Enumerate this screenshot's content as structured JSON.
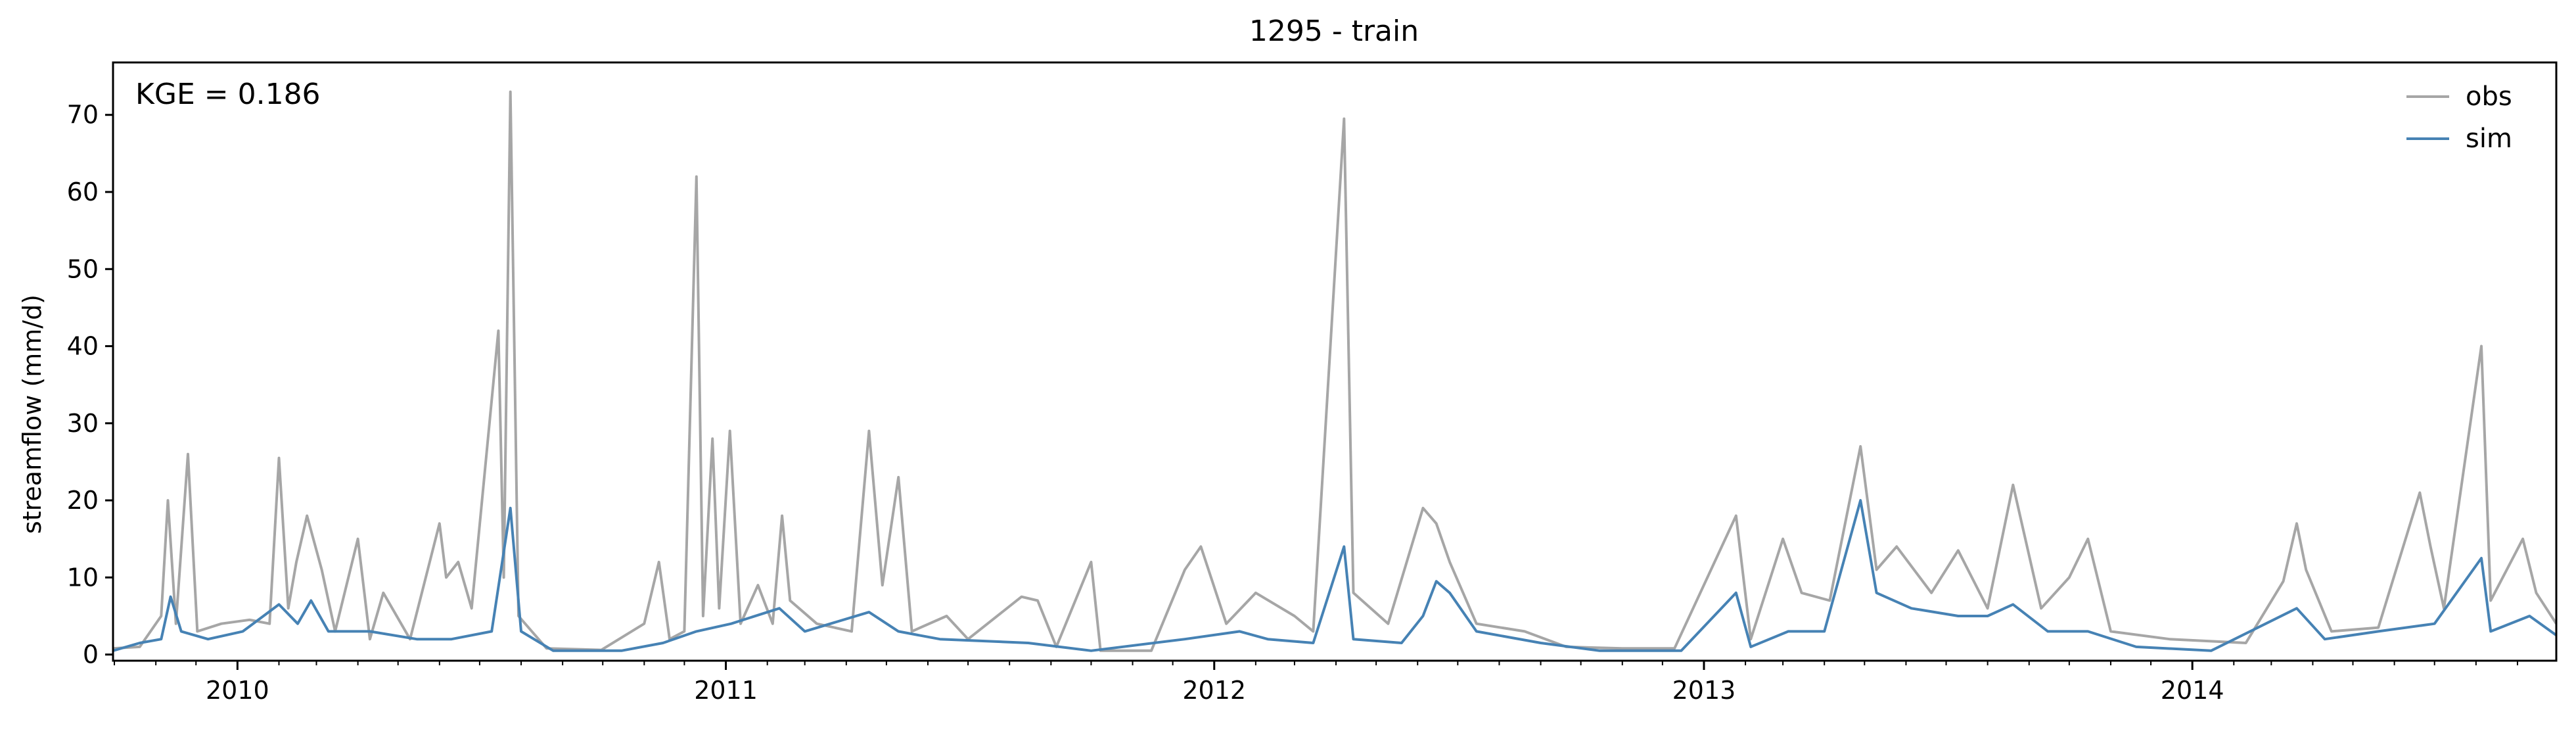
{
  "chart_data": {
    "type": "line",
    "title": "1295 - train",
    "xlabel": "",
    "ylabel": "streamflow (mm/d)",
    "annotation": "KGE = 0.186",
    "xlim": [
      "2009-09-30",
      "2014-09-30"
    ],
    "ylim": [
      -0.8,
      76.8
    ],
    "x_ticks": [
      {
        "date": "2010-01-01",
        "label": "2010"
      },
      {
        "date": "2011-01-01",
        "label": "2011"
      },
      {
        "date": "2012-01-01",
        "label": "2012"
      },
      {
        "date": "2013-01-01",
        "label": "2013"
      },
      {
        "date": "2014-01-01",
        "label": "2014"
      }
    ],
    "y_ticks": [
      0,
      10,
      20,
      30,
      40,
      50,
      60,
      70
    ],
    "legend": {
      "position": "top-right",
      "frame": false
    },
    "grid": false,
    "series": [
      {
        "name": "obs",
        "color": "#a6a6a6",
        "points": [
          [
            "2009-09-30",
            0.8
          ],
          [
            "2009-10-20",
            1.0
          ],
          [
            "2009-11-05",
            5.0
          ],
          [
            "2009-11-10",
            20.0
          ],
          [
            "2009-11-16",
            4.0
          ],
          [
            "2009-11-25",
            26.0
          ],
          [
            "2009-12-02",
            3.0
          ],
          [
            "2009-12-20",
            4.0
          ],
          [
            "2010-01-10",
            4.5
          ],
          [
            "2010-01-25",
            4.0
          ],
          [
            "2010-02-01",
            25.5
          ],
          [
            "2010-02-08",
            6.0
          ],
          [
            "2010-02-14",
            12.0
          ],
          [
            "2010-02-22",
            18.0
          ],
          [
            "2010-03-05",
            11.0
          ],
          [
            "2010-03-15",
            3.0
          ],
          [
            "2010-04-01",
            15.0
          ],
          [
            "2010-04-10",
            2.0
          ],
          [
            "2010-04-20",
            8.0
          ],
          [
            "2010-05-10",
            2.0
          ],
          [
            "2010-06-01",
            17.0
          ],
          [
            "2010-06-06",
            10.0
          ],
          [
            "2010-06-15",
            12.0
          ],
          [
            "2010-06-25",
            6.0
          ],
          [
            "2010-07-15",
            42.0
          ],
          [
            "2010-07-19",
            10.0
          ],
          [
            "2010-07-24",
            73.0
          ],
          [
            "2010-07-30",
            5.0
          ],
          [
            "2010-08-20",
            0.8
          ],
          [
            "2010-09-30",
            0.6
          ],
          [
            "2010-11-01",
            4.0
          ],
          [
            "2010-11-12",
            12.0
          ],
          [
            "2010-11-20",
            2.0
          ],
          [
            "2010-12-01",
            3.0
          ],
          [
            "2010-12-10",
            62.0
          ],
          [
            "2010-12-15",
            5.0
          ],
          [
            "2010-12-22",
            28.0
          ],
          [
            "2010-12-27",
            6.0
          ],
          [
            "2011-01-04",
            29.0
          ],
          [
            "2011-01-12",
            4.0
          ],
          [
            "2011-01-25",
            9.0
          ],
          [
            "2011-02-05",
            4.0
          ],
          [
            "2011-02-12",
            18.0
          ],
          [
            "2011-02-18",
            7.0
          ],
          [
            "2011-03-10",
            4.0
          ],
          [
            "2011-04-05",
            3.0
          ],
          [
            "2011-04-18",
            29.0
          ],
          [
            "2011-04-28",
            9.0
          ],
          [
            "2011-05-10",
            23.0
          ],
          [
            "2011-05-20",
            3.0
          ],
          [
            "2011-06-15",
            5.0
          ],
          [
            "2011-07-01",
            2.0
          ],
          [
            "2011-08-10",
            7.5
          ],
          [
            "2011-08-22",
            7.0
          ],
          [
            "2011-09-05",
            1.0
          ],
          [
            "2011-10-01",
            12.0
          ],
          [
            "2011-10-08",
            0.5
          ],
          [
            "2011-11-15",
            0.5
          ],
          [
            "2011-12-10",
            11.0
          ],
          [
            "2011-12-22",
            14.0
          ],
          [
            "2012-01-10",
            4.0
          ],
          [
            "2012-02-01",
            8.0
          ],
          [
            "2012-03-01",
            5.0
          ],
          [
            "2012-03-15",
            3.0
          ],
          [
            "2012-04-07",
            69.5
          ],
          [
            "2012-04-14",
            8.0
          ],
          [
            "2012-05-10",
            4.0
          ],
          [
            "2012-06-05",
            19.0
          ],
          [
            "2012-06-15",
            17.0
          ],
          [
            "2012-06-25",
            12.0
          ],
          [
            "2012-07-15",
            4.0
          ],
          [
            "2012-08-20",
            3.0
          ],
          [
            "2012-09-20",
            1.0
          ],
          [
            "2012-11-01",
            0.8
          ],
          [
            "2012-12-10",
            0.8
          ],
          [
            "2013-01-25",
            18.0
          ],
          [
            "2013-02-05",
            2.0
          ],
          [
            "2013-03-01",
            15.0
          ],
          [
            "2013-03-15",
            8.0
          ],
          [
            "2013-04-05",
            7.0
          ],
          [
            "2013-04-28",
            27.0
          ],
          [
            "2013-05-10",
            11.0
          ],
          [
            "2013-05-25",
            14.0
          ],
          [
            "2013-06-20",
            8.0
          ],
          [
            "2013-07-10",
            13.5
          ],
          [
            "2013-08-01",
            6.0
          ],
          [
            "2013-08-20",
            22.0
          ],
          [
            "2013-09-10",
            6.0
          ],
          [
            "2013-10-01",
            10.0
          ],
          [
            "2013-10-15",
            15.0
          ],
          [
            "2013-11-01",
            3.0
          ],
          [
            "2013-12-15",
            2.0
          ],
          [
            "2014-02-10",
            1.5
          ],
          [
            "2014-03-10",
            9.5
          ],
          [
            "2014-03-20",
            17.0
          ],
          [
            "2014-03-27",
            11.0
          ],
          [
            "2014-04-15",
            3.0
          ],
          [
            "2014-05-20",
            3.5
          ],
          [
            "2014-06-20",
            21.0
          ],
          [
            "2014-06-28",
            14.0
          ],
          [
            "2014-07-08",
            6.0
          ],
          [
            "2014-08-05",
            40.0
          ],
          [
            "2014-08-12",
            7.0
          ],
          [
            "2014-09-05",
            15.0
          ],
          [
            "2014-09-15",
            8.0
          ],
          [
            "2014-09-30",
            4.0
          ]
        ]
      },
      {
        "name": "sim",
        "color": "#4682b4",
        "points": [
          [
            "2009-09-30",
            0.5
          ],
          [
            "2009-10-20",
            1.5
          ],
          [
            "2009-11-05",
            2.0
          ],
          [
            "2009-11-12",
            7.5
          ],
          [
            "2009-11-20",
            3.0
          ],
          [
            "2009-12-10",
            2.0
          ],
          [
            "2010-01-05",
            3.0
          ],
          [
            "2010-02-01",
            6.5
          ],
          [
            "2010-02-15",
            4.0
          ],
          [
            "2010-02-25",
            7.0
          ],
          [
            "2010-03-10",
            3.0
          ],
          [
            "2010-04-10",
            3.0
          ],
          [
            "2010-05-15",
            2.0
          ],
          [
            "2010-06-10",
            2.0
          ],
          [
            "2010-07-10",
            3.0
          ],
          [
            "2010-07-24",
            19.0
          ],
          [
            "2010-08-01",
            3.0
          ],
          [
            "2010-08-25",
            0.5
          ],
          [
            "2010-10-15",
            0.5
          ],
          [
            "2010-11-15",
            1.5
          ],
          [
            "2010-12-10",
            3.0
          ],
          [
            "2011-01-05",
            4.0
          ],
          [
            "2011-02-10",
            6.0
          ],
          [
            "2011-03-01",
            3.0
          ],
          [
            "2011-04-18",
            5.5
          ],
          [
            "2011-05-10",
            3.0
          ],
          [
            "2011-06-10",
            2.0
          ],
          [
            "2011-08-15",
            1.5
          ],
          [
            "2011-10-01",
            0.5
          ],
          [
            "2011-12-10",
            2.0
          ],
          [
            "2012-01-20",
            3.0
          ],
          [
            "2012-02-10",
            2.0
          ],
          [
            "2012-03-15",
            1.5
          ],
          [
            "2012-04-07",
            14.0
          ],
          [
            "2012-04-14",
            2.0
          ],
          [
            "2012-05-20",
            1.5
          ],
          [
            "2012-06-05",
            5.0
          ],
          [
            "2012-06-15",
            9.5
          ],
          [
            "2012-06-25",
            8.0
          ],
          [
            "2012-07-15",
            3.0
          ],
          [
            "2012-09-01",
            1.5
          ],
          [
            "2012-10-15",
            0.5
          ],
          [
            "2012-12-15",
            0.5
          ],
          [
            "2013-01-25",
            8.0
          ],
          [
            "2013-02-05",
            1.0
          ],
          [
            "2013-03-05",
            3.0
          ],
          [
            "2013-04-01",
            3.0
          ],
          [
            "2013-04-28",
            20.0
          ],
          [
            "2013-05-10",
            8.0
          ],
          [
            "2013-06-05",
            6.0
          ],
          [
            "2013-07-10",
            5.0
          ],
          [
            "2013-08-01",
            5.0
          ],
          [
            "2013-08-20",
            6.5
          ],
          [
            "2013-09-15",
            3.0
          ],
          [
            "2013-10-15",
            3.0
          ],
          [
            "2013-11-20",
            1.0
          ],
          [
            "2014-01-15",
            0.5
          ],
          [
            "2014-03-20",
            6.0
          ],
          [
            "2014-04-10",
            2.0
          ],
          [
            "2014-05-20",
            3.0
          ],
          [
            "2014-07-01",
            4.0
          ],
          [
            "2014-08-05",
            12.5
          ],
          [
            "2014-08-12",
            3.0
          ],
          [
            "2014-09-10",
            5.0
          ],
          [
            "2014-09-30",
            2.5
          ]
        ]
      }
    ]
  }
}
